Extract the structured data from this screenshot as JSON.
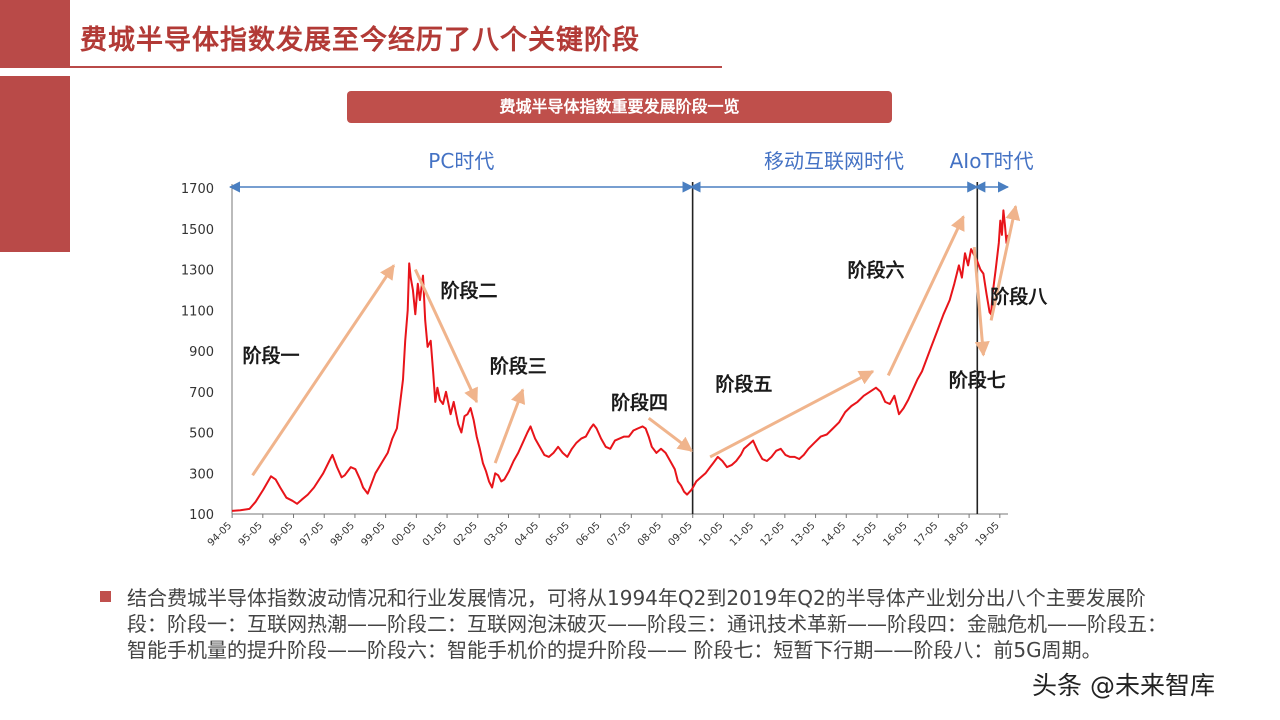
{
  "slide": {
    "title": "费城半导体指数发展至今经历了八个关键阶段",
    "banner": "费城半导体指数重要发展阶段一览",
    "footnote": "结合费城半导体指数波动情况和行业发展情况，可将从1994年Q2到2019年Q2的半导体产业划分出八个主要发展阶段：阶段一：互联网热潮——阶段二：互联网泡沫破灭——阶段三：通讯技术革新——阶段四：金融危机——阶段五：智能手机量的提升阶段——阶段六：智能手机价的提升阶段—— 阶段七：短暂下行期——阶段八：前5G周期。",
    "watermark": "头条 @未来智库"
  },
  "colors": {
    "accent": "#b94a48",
    "line": "#e8141a",
    "arrow": "#f0b48c",
    "era_arrow": "#4a7fc1",
    "era_text": "#4472c4",
    "title_text": "#b23a36"
  },
  "chart_data": {
    "type": "line",
    "title": "",
    "xlabel": "",
    "ylabel": "",
    "ylim": [
      100,
      1700
    ],
    "yticks": [
      100,
      300,
      500,
      700,
      900,
      1100,
      1300,
      1500,
      1700
    ],
    "xticks": [
      "94-05",
      "95-05",
      "96-05",
      "97-05",
      "98-05",
      "99-05",
      "00-05",
      "01-05",
      "02-05",
      "03-05",
      "04-05",
      "05-05",
      "06-05",
      "07-05",
      "08-05",
      "09-05",
      "10-05",
      "11-05",
      "12-05",
      "13-05",
      "14-05",
      "15-05",
      "16-05",
      "17-05",
      "18-05",
      "19-05"
    ],
    "xrange": [
      1994.33,
      2019.6
    ],
    "eras": [
      {
        "label": "PC时代",
        "start": 1994.33,
        "end": 2009.33
      },
      {
        "label": "移动互联网时代",
        "start": 2009.33,
        "end": 2018.6
      },
      {
        "label": "AIoT时代",
        "start": 2018.6,
        "end": 2019.6
      }
    ],
    "dividers": [
      2009.33,
      2018.6
    ],
    "series": [
      {
        "values": [
          [
            1994.33,
            115
          ],
          [
            1994.6,
            118
          ],
          [
            1994.9,
            125
          ],
          [
            1995.1,
            160
          ],
          [
            1995.35,
            220
          ],
          [
            1995.6,
            285
          ],
          [
            1995.75,
            270
          ],
          [
            1995.9,
            230
          ],
          [
            1996.1,
            180
          ],
          [
            1996.3,
            165
          ],
          [
            1996.45,
            150
          ],
          [
            1996.6,
            170
          ],
          [
            1996.8,
            195
          ],
          [
            1997.0,
            230
          ],
          [
            1997.3,
            300
          ],
          [
            1997.5,
            360
          ],
          [
            1997.6,
            390
          ],
          [
            1997.75,
            330
          ],
          [
            1997.9,
            280
          ],
          [
            1998.0,
            290
          ],
          [
            1998.2,
            330
          ],
          [
            1998.35,
            320
          ],
          [
            1998.5,
            270
          ],
          [
            1998.6,
            230
          ],
          [
            1998.75,
            200
          ],
          [
            1998.85,
            240
          ],
          [
            1999.0,
            300
          ],
          [
            1999.2,
            350
          ],
          [
            1999.4,
            400
          ],
          [
            1999.55,
            470
          ],
          [
            1999.7,
            520
          ],
          [
            1999.8,
            640
          ],
          [
            1999.9,
            760
          ],
          [
            1999.97,
            950
          ],
          [
            2000.05,
            1100
          ],
          [
            2000.1,
            1330
          ],
          [
            2000.15,
            1260
          ],
          [
            2000.22,
            1200
          ],
          [
            2000.3,
            1080
          ],
          [
            2000.38,
            1230
          ],
          [
            2000.45,
            1150
          ],
          [
            2000.55,
            1270
          ],
          [
            2000.62,
            1050
          ],
          [
            2000.7,
            920
          ],
          [
            2000.8,
            950
          ],
          [
            2000.88,
            800
          ],
          [
            2000.95,
            650
          ],
          [
            2001.02,
            720
          ],
          [
            2001.1,
            660
          ],
          [
            2001.2,
            640
          ],
          [
            2001.3,
            700
          ],
          [
            2001.45,
            590
          ],
          [
            2001.55,
            650
          ],
          [
            2001.7,
            540
          ],
          [
            2001.8,
            500
          ],
          [
            2001.9,
            580
          ],
          [
            2002.0,
            590
          ],
          [
            2002.1,
            620
          ],
          [
            2002.2,
            560
          ],
          [
            2002.3,
            480
          ],
          [
            2002.4,
            420
          ],
          [
            2002.5,
            350
          ],
          [
            2002.6,
            310
          ],
          [
            2002.7,
            260
          ],
          [
            2002.8,
            230
          ],
          [
            2002.9,
            300
          ],
          [
            2003.0,
            290
          ],
          [
            2003.1,
            260
          ],
          [
            2003.2,
            270
          ],
          [
            2003.35,
            310
          ],
          [
            2003.5,
            360
          ],
          [
            2003.65,
            400
          ],
          [
            2003.8,
            450
          ],
          [
            2003.95,
            500
          ],
          [
            2004.05,
            530
          ],
          [
            2004.2,
            470
          ],
          [
            2004.35,
            430
          ],
          [
            2004.5,
            390
          ],
          [
            2004.65,
            380
          ],
          [
            2004.8,
            400
          ],
          [
            2004.95,
            430
          ],
          [
            2005.1,
            400
          ],
          [
            2005.25,
            380
          ],
          [
            2005.4,
            420
          ],
          [
            2005.55,
            450
          ],
          [
            2005.7,
            470
          ],
          [
            2005.85,
            480
          ],
          [
            2006.0,
            520
          ],
          [
            2006.1,
            540
          ],
          [
            2006.2,
            520
          ],
          [
            2006.35,
            470
          ],
          [
            2006.5,
            430
          ],
          [
            2006.65,
            420
          ],
          [
            2006.8,
            460
          ],
          [
            2006.95,
            470
          ],
          [
            2007.1,
            480
          ],
          [
            2007.25,
            480
          ],
          [
            2007.4,
            510
          ],
          [
            2007.55,
            520
          ],
          [
            2007.7,
            530
          ],
          [
            2007.8,
            520
          ],
          [
            2007.9,
            480
          ],
          [
            2008.0,
            430
          ],
          [
            2008.15,
            400
          ],
          [
            2008.3,
            420
          ],
          [
            2008.45,
            400
          ],
          [
            2008.6,
            360
          ],
          [
            2008.75,
            320
          ],
          [
            2008.85,
            260
          ],
          [
            2008.95,
            240
          ],
          [
            2009.05,
            210
          ],
          [
            2009.15,
            195
          ],
          [
            2009.3,
            220
          ],
          [
            2009.45,
            260
          ],
          [
            2009.6,
            280
          ],
          [
            2009.75,
            300
          ],
          [
            2009.9,
            330
          ],
          [
            2010.0,
            350
          ],
          [
            2010.15,
            380
          ],
          [
            2010.3,
            360
          ],
          [
            2010.45,
            330
          ],
          [
            2010.6,
            340
          ],
          [
            2010.75,
            360
          ],
          [
            2010.9,
            390
          ],
          [
            2011.0,
            420
          ],
          [
            2011.15,
            440
          ],
          [
            2011.3,
            460
          ],
          [
            2011.45,
            410
          ],
          [
            2011.6,
            370
          ],
          [
            2011.75,
            360
          ],
          [
            2011.9,
            380
          ],
          [
            2012.05,
            410
          ],
          [
            2012.2,
            420
          ],
          [
            2012.35,
            390
          ],
          [
            2012.5,
            380
          ],
          [
            2012.65,
            380
          ],
          [
            2012.8,
            370
          ],
          [
            2012.95,
            390
          ],
          [
            2013.1,
            420
          ],
          [
            2013.3,
            450
          ],
          [
            2013.5,
            480
          ],
          [
            2013.7,
            490
          ],
          [
            2013.9,
            520
          ],
          [
            2014.1,
            550
          ],
          [
            2014.3,
            600
          ],
          [
            2014.5,
            630
          ],
          [
            2014.7,
            650
          ],
          [
            2014.9,
            680
          ],
          [
            2015.1,
            700
          ],
          [
            2015.3,
            720
          ],
          [
            2015.45,
            700
          ],
          [
            2015.6,
            650
          ],
          [
            2015.75,
            640
          ],
          [
            2015.9,
            680
          ],
          [
            2016.05,
            590
          ],
          [
            2016.2,
            620
          ],
          [
            2016.35,
            660
          ],
          [
            2016.5,
            710
          ],
          [
            2016.65,
            760
          ],
          [
            2016.8,
            800
          ],
          [
            2016.95,
            860
          ],
          [
            2017.1,
            920
          ],
          [
            2017.3,
            1000
          ],
          [
            2017.5,
            1080
          ],
          [
            2017.7,
            1150
          ],
          [
            2017.85,
            1230
          ],
          [
            2018.0,
            1320
          ],
          [
            2018.1,
            1260
          ],
          [
            2018.2,
            1380
          ],
          [
            2018.3,
            1320
          ],
          [
            2018.4,
            1400
          ],
          [
            2018.5,
            1370
          ],
          [
            2018.6,
            1340
          ],
          [
            2018.7,
            1300
          ],
          [
            2018.8,
            1280
          ],
          [
            2018.9,
            1180
          ],
          [
            2019.0,
            1090
          ],
          [
            2019.05,
            1080
          ],
          [
            2019.1,
            1180
          ],
          [
            2019.2,
            1300
          ],
          [
            2019.3,
            1430
          ],
          [
            2019.35,
            1540
          ],
          [
            2019.4,
            1470
          ],
          [
            2019.45,
            1590
          ],
          [
            2019.5,
            1520
          ],
          [
            2019.55,
            1430
          ],
          [
            2019.6,
            1470
          ]
        ]
      }
    ],
    "annotations": [
      {
        "label": "阶段一",
        "x": 1995.6,
        "y": 880
      },
      {
        "label": "阶段二",
        "x": 2002.05,
        "y": 1200
      },
      {
        "label": "阶段三",
        "x": 2003.65,
        "y": 830
      },
      {
        "label": "阶段四",
        "x": 2007.6,
        "y": 650
      },
      {
        "label": "阶段五",
        "x": 2011.0,
        "y": 740
      },
      {
        "label": "阶段六",
        "x": 2015.3,
        "y": 1300
      },
      {
        "label": "阶段七",
        "x": 2018.6,
        "y": 760
      },
      {
        "label": "阶段八",
        "x": 2019.95,
        "y": 1170
      }
    ],
    "phase_arrows": [
      {
        "from": [
          1995.0,
          290
        ],
        "to": [
          1999.6,
          1320
        ]
      },
      {
        "from": [
          2000.3,
          1300
        ],
        "to": [
          2002.3,
          650
        ]
      },
      {
        "from": [
          2002.9,
          350
        ],
        "to": [
          2003.8,
          710
        ]
      },
      {
        "from": [
          2007.9,
          570
        ],
        "to": [
          2009.3,
          410
        ]
      },
      {
        "from": [
          2009.9,
          380
        ],
        "to": [
          2015.2,
          800
        ]
      },
      {
        "from": [
          2015.7,
          780
        ],
        "to": [
          2018.15,
          1560
        ]
      },
      {
        "from": [
          2018.5,
          1410
        ],
        "to": [
          2018.8,
          880
        ]
      },
      {
        "from": [
          2019.05,
          1050
        ],
        "to": [
          2019.85,
          1610
        ]
      }
    ]
  }
}
